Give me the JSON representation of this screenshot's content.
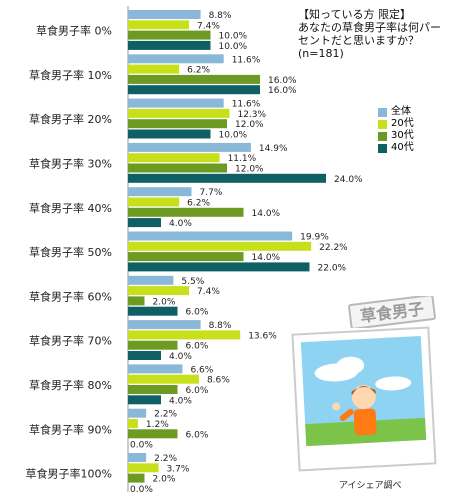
{
  "chart_data": {
    "type": "bar",
    "orientation": "horizontal",
    "categories": [
      "草食男子率 0%",
      "草食男子率 10%",
      "草食男子率 20%",
      "草食男子率 30%",
      "草食男子率 40%",
      "草食男子率 50%",
      "草食男子率 60%",
      "草食男子率 70%",
      "草食男子率 80%",
      "草食男子率 90%",
      "草食男子率100%"
    ],
    "series": [
      {
        "name": "全体",
        "color": "#8ab8d8",
        "values": [
          8.8,
          11.6,
          11.6,
          14.9,
          7.7,
          19.9,
          5.5,
          8.8,
          6.6,
          2.2,
          2.2
        ]
      },
      {
        "name": "20代",
        "color": "#c8e01c",
        "values": [
          7.4,
          6.2,
          12.3,
          11.1,
          6.2,
          22.2,
          7.4,
          13.6,
          8.6,
          1.2,
          3.7
        ]
      },
      {
        "name": "30代",
        "color": "#6c9a22",
        "values": [
          10.0,
          16.0,
          12.0,
          12.0,
          14.0,
          14.0,
          2.0,
          6.0,
          6.0,
          6.0,
          2.0
        ]
      },
      {
        "name": "40代",
        "color": "#0f6064",
        "values": [
          10.0,
          16.0,
          10.0,
          24.0,
          4.0,
          22.0,
          6.0,
          4.0,
          4.0,
          0.0,
          0.0
        ]
      }
    ],
    "value_labels": [
      [
        "8.8%",
        "11.6%",
        "11.6%",
        "14.9%",
        "7.7%",
        "19.9%",
        "5.5%",
        "8.8%",
        "6.6%",
        "2.2%",
        "2.2%"
      ],
      [
        "7.4%",
        "6.2%",
        "12.3%",
        "11.1%",
        "6.2%",
        "22.2%",
        "7.4%",
        "13.6%",
        "8.6%",
        "1.2%",
        "3.7%"
      ],
      [
        "10.0%",
        "16.0%",
        "12.0%",
        "12.0%",
        "14.0%",
        "14.0%",
        "2.0%",
        "6.0%",
        "6.0%",
        "6.0%",
        "2.0%"
      ],
      [
        "10.0%",
        "16.0%",
        "10.0%",
        "24.0%",
        "4.0%",
        "22.0%",
        "6.0%",
        "4.0%",
        "4.0%",
        "0.0%",
        "0.0%"
      ]
    ],
    "xlim": [
      0,
      25
    ],
    "grid": false,
    "legend_position": "right"
  },
  "note": {
    "header": "【知っている方 限定】",
    "question": "あなたの草食男子率は何パーセントだと思いますか？",
    "sample": "(n=181)"
  },
  "stamp_text": "草食男子",
  "credit": "アイシェア調べ"
}
